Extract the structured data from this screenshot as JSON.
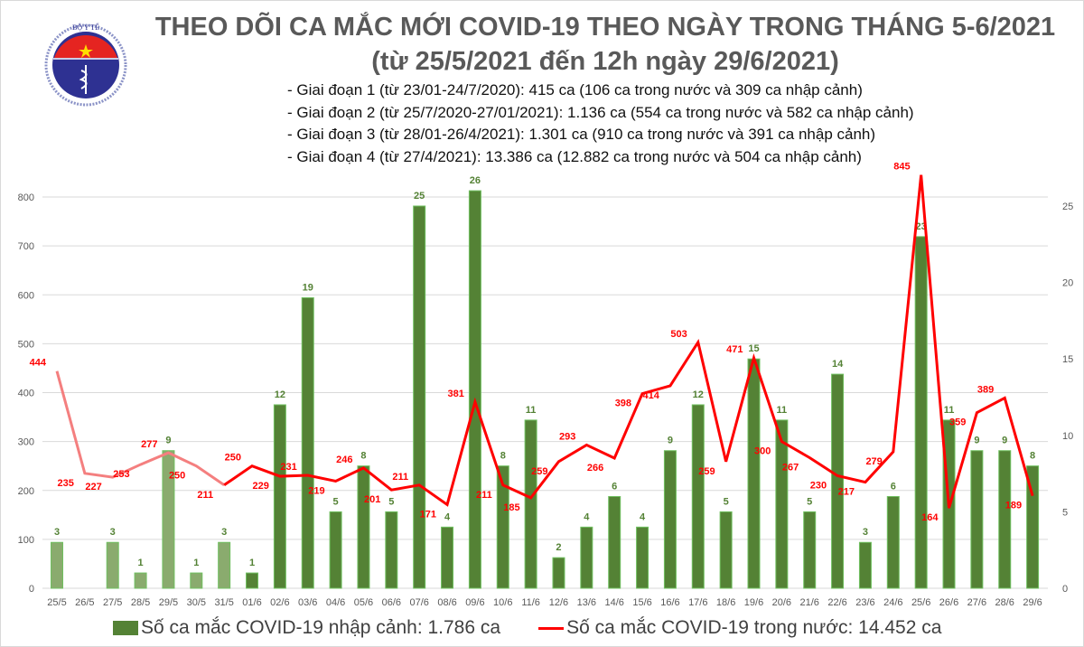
{
  "logo": {
    "top_text": "BỘ Y TẾ",
    "bottom_text": "MINISTRY OF HEALTH"
  },
  "title": "THEO DÕI CA MẮC MỚI COVID-19 THEO NGÀY TRONG THÁNG 5-6/2021",
  "subtitle": "(từ 25/5/2021 đến 12h ngày 29/6/2021)",
  "phases": [
    "- Giai đoạn 1 (từ 23/01-24/7/2020): 415 ca (106 ca trong nước và 309 ca nhập cảnh)",
    "- Giai đoạn 2 (từ 25/7/2020-27/01/2021): 1.136 ca (554 ca trong nước và 582 ca nhập cảnh)",
    "- Giai đoạn 3 (từ 28/01-26/4/2021): 1.301 ca (910 ca trong nước và 391 ca nhập cảnh)",
    "- Giai đoạn 4 (từ 27/4/2021): 13.386 ca (12.882 ca trong nước và 504 ca nhập cảnh)"
  ],
  "chart_data": {
    "type": "bar+line",
    "categories": [
      "25/5",
      "26/5",
      "27/5",
      "28/5",
      "29/5",
      "30/5",
      "31/5",
      "01/6",
      "02/6",
      "03/6",
      "04/6",
      "05/6",
      "06/6",
      "07/6",
      "08/6",
      "09/6",
      "10/6",
      "11/6",
      "12/6",
      "13/6",
      "14/6",
      "15/6",
      "16/6",
      "17/6",
      "18/6",
      "19/6",
      "20/6",
      "21/6",
      "22/6",
      "23/6",
      "24/6",
      "25/6",
      "26/6",
      "27/6",
      "28/6",
      "29/6"
    ],
    "series": [
      {
        "name": "Số ca mắc COVID-19 nhập cảnh: 1.786 ca",
        "type": "bar",
        "axis": "right",
        "color": "#548235",
        "faded_color": "#8aab6e",
        "values": [
          3,
          0,
          3,
          1,
          9,
          1,
          3,
          1,
          12,
          19,
          5,
          8,
          5,
          25,
          4,
          26,
          8,
          11,
          2,
          4,
          6,
          4,
          9,
          12,
          5,
          15,
          11,
          5,
          14,
          3,
          6,
          23,
          11,
          9,
          9,
          8
        ],
        "labels": [
          "3",
          "",
          "3",
          "1",
          "9",
          "1",
          "3",
          "1",
          "12",
          "19",
          "5",
          "8",
          "5",
          "25",
          "4",
          "26",
          "8",
          "11",
          "2",
          "4",
          "6",
          "4",
          "9",
          "12",
          "5",
          "15",
          "11",
          "5",
          "14",
          "3",
          "6",
          "23",
          "11",
          "9",
          "9",
          "8"
        ]
      },
      {
        "name": "Số ca mắc COVID-19 trong nước: 14.452 ca",
        "type": "line",
        "axis": "left",
        "color": "#ff0000",
        "faded_color": "#f47f7f",
        "values": [
          444,
          235,
          227,
          253,
          277,
          250,
          211,
          250,
          229,
          231,
          219,
          246,
          201,
          211,
          171,
          381,
          211,
          185,
          259,
          293,
          266,
          398,
          414,
          503,
          259,
          471,
          300,
          267,
          230,
          217,
          279,
          845,
          164,
          359,
          389,
          189
        ]
      }
    ],
    "faded_through": "31/5",
    "left_axis": {
      "ylim": [
        0,
        800
      ],
      "ticks": [
        0,
        100,
        200,
        300,
        400,
        500,
        600,
        700,
        800
      ]
    },
    "right_axis": {
      "ylim": [
        0,
        25
      ],
      "ticks": [
        0,
        5,
        10,
        15,
        20,
        25
      ]
    },
    "grid": true,
    "legend": "bottom"
  }
}
